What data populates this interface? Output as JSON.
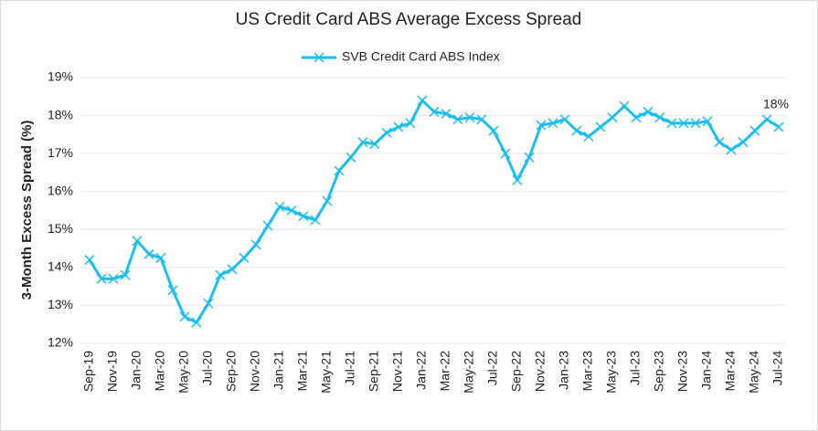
{
  "chart_data": {
    "type": "line",
    "title": "US Credit Card ABS Average Excess Spread",
    "y_label": "3-Month Excess Spread (%)",
    "categories": [
      "Sep-19",
      null,
      "Nov-19",
      null,
      "Jan-20",
      null,
      "Mar-20",
      null,
      "May-20",
      null,
      "Jul-20",
      null,
      "Sep-20",
      null,
      "Nov-20",
      null,
      "Jan-21",
      null,
      "Mar-21",
      null,
      "May-21",
      null,
      "Jul-21",
      null,
      "Sep-21",
      null,
      "Nov-21",
      null,
      "Jan-22",
      null,
      "Mar-22",
      null,
      "May-22",
      null,
      "Jul-22",
      null,
      "Sep-22",
      null,
      "Nov-22",
      null,
      "Jan-23",
      null,
      "Mar-23",
      null,
      "May-23",
      null,
      "Jul-23",
      null,
      "Sep-23",
      null,
      "Nov-23",
      null,
      "Jan-24",
      null,
      "Mar-24",
      null,
      "May-24",
      null,
      "Jul-24"
    ],
    "series": [
      {
        "name": "SVB Credit Card ABS Index",
        "color": "#1bbef0",
        "values": [
          14.2,
          13.7,
          13.7,
          13.8,
          14.7,
          14.35,
          14.25,
          13.4,
          12.7,
          12.55,
          13.05,
          13.8,
          13.95,
          14.25,
          14.6,
          15.1,
          15.6,
          15.5,
          15.35,
          15.25,
          15.75,
          16.55,
          16.9,
          17.3,
          17.25,
          17.55,
          17.7,
          17.8,
          18.4,
          18.1,
          18.05,
          17.9,
          17.95,
          17.9,
          17.6,
          17.0,
          16.3,
          16.9,
          17.75,
          17.8,
          17.9,
          17.6,
          17.45,
          17.7,
          17.95,
          18.25,
          17.95,
          18.1,
          17.95,
          17.8,
          17.8,
          17.8,
          17.85,
          17.3,
          17.1,
          17.3,
          17.6,
          17.9,
          17.7
        ],
        "value_labels": [
          null,
          null,
          null,
          null,
          null,
          null,
          null,
          null,
          null,
          null,
          null,
          null,
          null,
          null,
          null,
          null,
          null,
          null,
          null,
          null,
          null,
          null,
          null,
          null,
          null,
          null,
          null,
          null,
          null,
          null,
          null,
          null,
          null,
          null,
          null,
          null,
          null,
          null,
          null,
          null,
          null,
          null,
          null,
          null,
          null,
          null,
          null,
          null,
          null,
          null,
          null,
          null,
          null,
          null,
          null,
          null,
          null,
          "18%",
          null
        ]
      }
    ],
    "ylim": [
      12,
      19
    ],
    "yticks": [
      {
        "value": 12,
        "label": "12%"
      },
      {
        "value": 13,
        "label": "13%"
      },
      {
        "value": 14,
        "label": "14%"
      },
      {
        "value": 15,
        "label": "15%"
      },
      {
        "value": 16,
        "label": "16%"
      },
      {
        "value": 17,
        "label": "17%"
      },
      {
        "value": 18,
        "label": "18%"
      },
      {
        "value": 19,
        "label": "19%"
      }
    ],
    "grid": true,
    "legend": "top"
  }
}
